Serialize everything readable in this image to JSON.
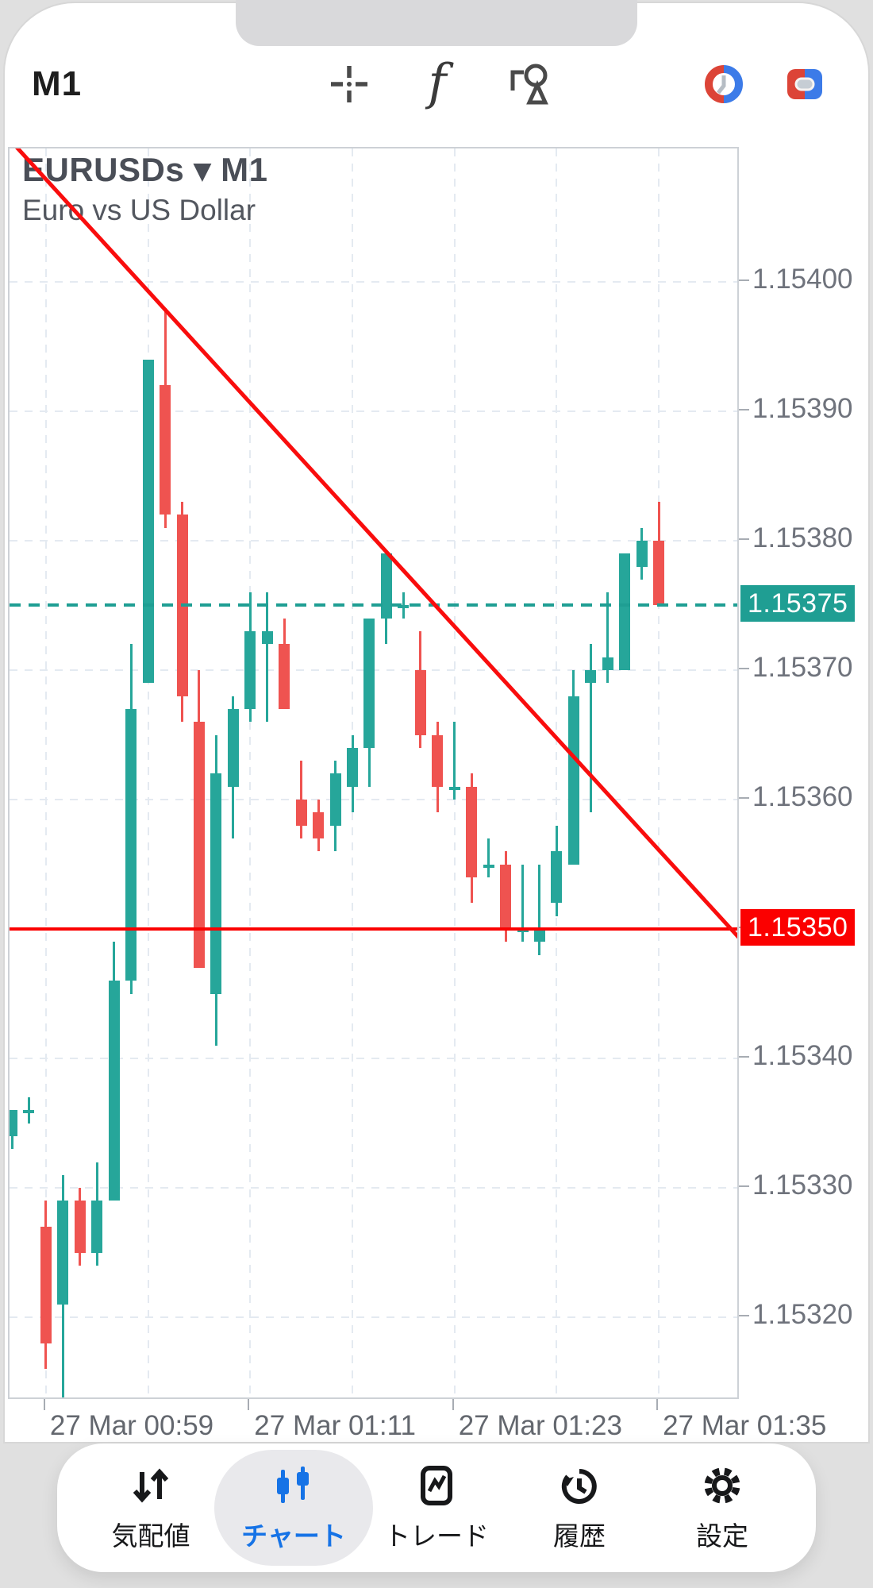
{
  "header": {
    "timeframe": "M1",
    "tool_icons": [
      "crosshair-icon",
      "function-icon",
      "objects-icon",
      "clock-donut-icon",
      "split-square-icon"
    ],
    "function_glyph": "f"
  },
  "chart": {
    "title": "EURUSDs ▾ M1",
    "symbol": "EURUSDs",
    "timeframe": "M1",
    "subtitle": "Euro vs US Dollar"
  },
  "chart_data": {
    "type": "candlestick",
    "title": "EURUSDs M1",
    "subtitle": "Euro vs US Dollar",
    "price_top": 1.154103,
    "price_bottom": 1.1531357,
    "grid": true,
    "colors": {
      "bull": "#26A69A",
      "bear": "#EF5350",
      "trend": "#F90D0D",
      "level": "#1F9E93"
    },
    "y_ticks": [
      {
        "price": 1.154,
        "label": "1.15400"
      },
      {
        "price": 1.1539,
        "label": "1.15390"
      },
      {
        "price": 1.1538,
        "label": "1.15380"
      },
      {
        "price": 1.1537,
        "label": "1.15370"
      },
      {
        "price": 1.1536,
        "label": "1.15360"
      },
      {
        "price": 1.1535,
        "label": "1.15350"
      },
      {
        "price": 1.1534,
        "label": "1.15340"
      },
      {
        "price": 1.1533,
        "label": "1.15330"
      },
      {
        "price": 1.1532,
        "label": "1.15320"
      }
    ],
    "x_ticks": [
      {
        "index": 2,
        "label": "27 Mar 00:59"
      },
      {
        "index": 14,
        "label": "27 Mar 01:11"
      },
      {
        "index": 26,
        "label": "27 Mar 01:23"
      },
      {
        "index": 38,
        "label": "27 Mar 01:35"
      }
    ],
    "x_grid_indices": [
      2,
      8,
      14,
      20,
      26,
      32,
      38
    ],
    "price_lines": [
      {
        "price": 1.15375,
        "style": "dashed",
        "color": "#1F9E93",
        "badge": "1.15375"
      },
      {
        "price": 1.1535,
        "style": "solid",
        "color": "#FB0000",
        "badge": "1.15350"
      }
    ],
    "trendline": {
      "color": "#F90D0D",
      "from": {
        "index": -0.14,
        "price": 1.15411
      },
      "to": {
        "index": 42.94,
        "price": 1.15349
      }
    },
    "candles": [
      {
        "t": "00:57",
        "o": 1.15334,
        "h": 1.15336,
        "l": 1.15333,
        "c": 1.15336
      },
      {
        "t": "00:58",
        "o": 1.15336,
        "h": 1.15337,
        "l": 1.15335,
        "c": 1.15336
      },
      {
        "t": "00:59",
        "o": 1.15327,
        "h": 1.15329,
        "l": 1.15316,
        "c": 1.15318
      },
      {
        "t": "01:00",
        "o": 1.15321,
        "h": 1.15331,
        "l": 1.15313,
        "c": 1.15329
      },
      {
        "t": "01:01",
        "o": 1.15329,
        "h": 1.1533,
        "l": 1.15324,
        "c": 1.15325
      },
      {
        "t": "01:02",
        "o": 1.15325,
        "h": 1.15332,
        "l": 1.15324,
        "c": 1.15329
      },
      {
        "t": "01:03",
        "o": 1.15329,
        "h": 1.15349,
        "l": 1.15329,
        "c": 1.15346
      },
      {
        "t": "01:04",
        "o": 1.15346,
        "h": 1.15372,
        "l": 1.15345,
        "c": 1.15367
      },
      {
        "t": "01:05",
        "o": 1.15369,
        "h": 1.15394,
        "l": 1.15369,
        "c": 1.15394
      },
      {
        "t": "01:06",
        "o": 1.15392,
        "h": 1.15398,
        "l": 1.15381,
        "c": 1.15382
      },
      {
        "t": "01:07",
        "o": 1.15382,
        "h": 1.15383,
        "l": 1.15366,
        "c": 1.15368
      },
      {
        "t": "01:08",
        "o": 1.15366,
        "h": 1.1537,
        "l": 1.15347,
        "c": 1.15347
      },
      {
        "t": "01:09",
        "o": 1.15345,
        "h": 1.15365,
        "l": 1.15341,
        "c": 1.15362
      },
      {
        "t": "01:10",
        "o": 1.15361,
        "h": 1.15368,
        "l": 1.15357,
        "c": 1.15367
      },
      {
        "t": "01:11",
        "o": 1.15367,
        "h": 1.15376,
        "l": 1.15366,
        "c": 1.15373
      },
      {
        "t": "01:12",
        "o": 1.15372,
        "h": 1.15376,
        "l": 1.15366,
        "c": 1.15373
      },
      {
        "t": "01:13",
        "o": 1.15372,
        "h": 1.15374,
        "l": 1.15367,
        "c": 1.15367
      },
      {
        "t": "01:14",
        "o": 1.1536,
        "h": 1.15363,
        "l": 1.15357,
        "c": 1.15358
      },
      {
        "t": "01:15",
        "o": 1.15359,
        "h": 1.1536,
        "l": 1.15356,
        "c": 1.15357
      },
      {
        "t": "01:16",
        "o": 1.15358,
        "h": 1.15363,
        "l": 1.15356,
        "c": 1.15362
      },
      {
        "t": "01:17",
        "o": 1.15361,
        "h": 1.15365,
        "l": 1.15359,
        "c": 1.15364
      },
      {
        "t": "01:18",
        "o": 1.15364,
        "h": 1.15374,
        "l": 1.15361,
        "c": 1.15374
      },
      {
        "t": "01:19",
        "o": 1.15374,
        "h": 1.15379,
        "l": 1.15372,
        "c": 1.15379
      },
      {
        "t": "01:20",
        "o": 1.15375,
        "h": 1.15376,
        "l": 1.15374,
        "c": 1.15375
      },
      {
        "t": "01:21",
        "o": 1.1537,
        "h": 1.15373,
        "l": 1.15364,
        "c": 1.15365
      },
      {
        "t": "01:22",
        "o": 1.15365,
        "h": 1.15366,
        "l": 1.15359,
        "c": 1.15361
      },
      {
        "t": "01:23",
        "o": 1.15361,
        "h": 1.15366,
        "l": 1.1536,
        "c": 1.15361
      },
      {
        "t": "01:24",
        "o": 1.15361,
        "h": 1.15362,
        "l": 1.15352,
        "c": 1.15354
      },
      {
        "t": "01:25",
        "o": 1.15355,
        "h": 1.15357,
        "l": 1.15354,
        "c": 1.15355
      },
      {
        "t": "01:26",
        "o": 1.15355,
        "h": 1.15356,
        "l": 1.15349,
        "c": 1.1535
      },
      {
        "t": "01:27",
        "o": 1.1535,
        "h": 1.15355,
        "l": 1.15349,
        "c": 1.1535
      },
      {
        "t": "01:28",
        "o": 1.15349,
        "h": 1.15355,
        "l": 1.15348,
        "c": 1.1535
      },
      {
        "t": "01:29",
        "o": 1.15352,
        "h": 1.15358,
        "l": 1.15351,
        "c": 1.15356
      },
      {
        "t": "01:30",
        "o": 1.15355,
        "h": 1.1537,
        "l": 1.15355,
        "c": 1.15368
      },
      {
        "t": "01:31",
        "o": 1.15369,
        "h": 1.15372,
        "l": 1.15359,
        "c": 1.1537
      },
      {
        "t": "01:32",
        "o": 1.1537,
        "h": 1.15376,
        "l": 1.15369,
        "c": 1.15371
      },
      {
        "t": "01:33",
        "o": 1.1537,
        "h": 1.15379,
        "l": 1.1537,
        "c": 1.15379
      },
      {
        "t": "01:34",
        "o": 1.15378,
        "h": 1.15381,
        "l": 1.15377,
        "c": 1.1538
      },
      {
        "t": "01:35",
        "o": 1.1538,
        "h": 1.15383,
        "l": 1.15375,
        "c": 1.15375
      }
    ]
  },
  "tabbar": {
    "tabs": [
      {
        "id": "quotes",
        "label": "気配値",
        "active": false
      },
      {
        "id": "charts",
        "label": "チャート",
        "active": true
      },
      {
        "id": "trade",
        "label": "トレード",
        "active": false
      },
      {
        "id": "history",
        "label": "履歴",
        "active": false
      },
      {
        "id": "settings",
        "label": "設定",
        "active": false
      }
    ],
    "active_color": "#1673E6",
    "inactive_color": "#17181A"
  }
}
